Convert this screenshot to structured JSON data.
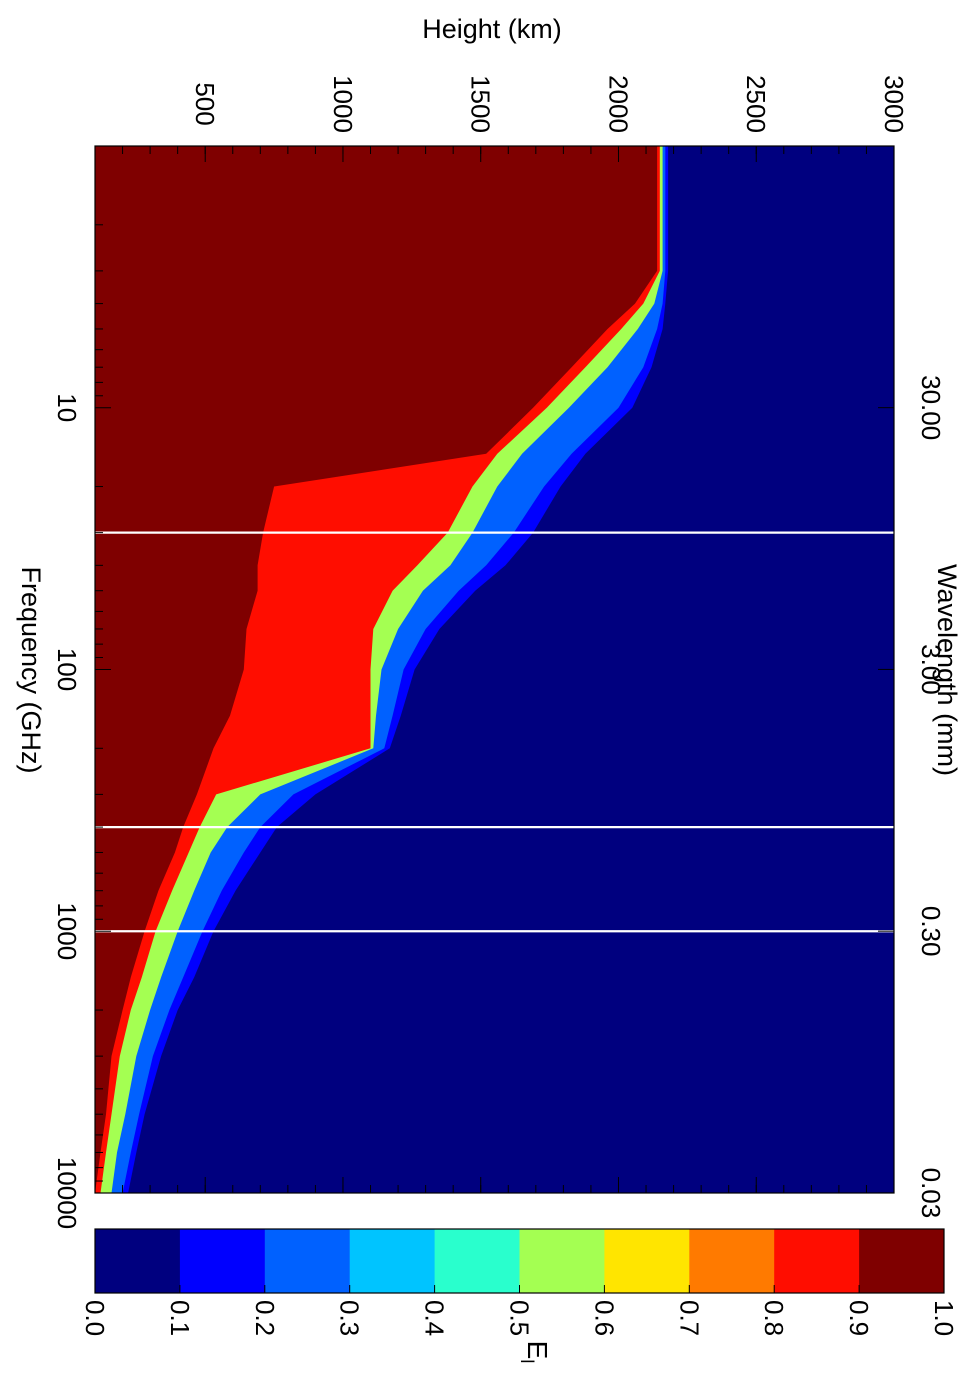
{
  "chart_data": {
    "type": "heatmap",
    "x_axis": {
      "label": "Frequency (GHz)",
      "scale": "log",
      "range": [
        1,
        10000
      ],
      "ticks": [
        {
          "value": 10,
          "label": "10"
        },
        {
          "value": 100,
          "label": "100"
        },
        {
          "value": 1000,
          "label": "1000"
        },
        {
          "value": 10000,
          "label": "10000"
        }
      ]
    },
    "x2_axis": {
      "label": "Wavelength (mm)",
      "scale": "log",
      "ticks": [
        {
          "value": 30.0,
          "label": "30.00"
        },
        {
          "value": 3.0,
          "label": "3.00"
        },
        {
          "value": 0.3,
          "label": "0.30"
        },
        {
          "value": 0.03,
          "label": "0.03"
        }
      ]
    },
    "y_axis": {
      "label": "Height (km)",
      "scale": "linear",
      "range": [
        100,
        3000
      ],
      "ticks": [
        {
          "value": 500,
          "label": "500"
        },
        {
          "value": 1000,
          "label": "1000"
        },
        {
          "value": 1500,
          "label": "1500"
        },
        {
          "value": 2000,
          "label": "2000"
        },
        {
          "value": 2500,
          "label": "2500"
        },
        {
          "value": 3000,
          "label": "3000"
        }
      ]
    },
    "colorbar": {
      "label": "E",
      "label_sub": "l",
      "levels": [
        0.0,
        0.1,
        0.2,
        0.3,
        0.4,
        0.5,
        0.6,
        0.7,
        0.8,
        0.9,
        1.0
      ],
      "tick_labels": [
        "0.0",
        "0.1",
        "0.2",
        "0.3",
        "0.4",
        "0.5",
        "0.6",
        "0.7",
        "0.8",
        "0.9",
        "1.0"
      ],
      "colors": [
        "#00007f",
        "#0000ff",
        "#0061ff",
        "#00c4ff",
        "#29ffcd",
        "#a4ff52",
        "#ffe500",
        "#ff7a00",
        "#ff0d00",
        "#7f0000"
      ]
    },
    "contour_boundaries": {
      "x_frequency_GHz": [
        1,
        2,
        3,
        4,
        5,
        7,
        10,
        15,
        20,
        30,
        40,
        50,
        70,
        100,
        150,
        200,
        300,
        400,
        500,
        700,
        1000,
        1500,
        2000,
        3000,
        5000,
        7000,
        10000
      ],
      "levels": [
        {
          "level": 0.9,
          "height_km": [
            2140,
            2140,
            2140,
            2060,
            1960,
            1830,
            1690,
            1520,
            750,
            710,
            690,
            690,
            650,
            640,
            590,
            530,
            470,
            420,
            390,
            330,
            280,
            230,
            200,
            160,
            140,
            120,
            100
          ]
        },
        {
          "level": 0.8,
          "height_km": [
            2150,
            2150,
            2150,
            2090,
            2010,
            1880,
            1740,
            1560,
            1470,
            1380,
            1270,
            1180,
            1110,
            1100,
            1100,
            1100,
            540,
            480,
            440,
            380,
            320,
            270,
            230,
            190,
            160,
            140,
            120
          ]
        },
        {
          "level": 0.5,
          "height_km": [
            2160,
            2160,
            2160,
            2130,
            2070,
            1960,
            1820,
            1650,
            1560,
            1470,
            1390,
            1290,
            1200,
            1140,
            1120,
            1110,
            700,
            580,
            520,
            460,
            400,
            340,
            300,
            250,
            210,
            180,
            160
          ]
        },
        {
          "level": 0.2,
          "height_km": [
            2170,
            2170,
            2170,
            2160,
            2140,
            2090,
            2000,
            1830,
            1730,
            1620,
            1520,
            1420,
            1300,
            1220,
            1180,
            1150,
            820,
            700,
            640,
            560,
            490,
            420,
            370,
            310,
            260,
            230,
            200
          ]
        },
        {
          "level": 0.1,
          "height_km": [
            2180,
            2180,
            2180,
            2170,
            2160,
            2120,
            2050,
            1880,
            1790,
            1690,
            1590,
            1480,
            1350,
            1260,
            1210,
            1170,
            900,
            760,
            700,
            610,
            530,
            460,
            400,
            340,
            280,
            250,
            220
          ]
        }
      ]
    },
    "vertical_lines_frequency_GHz": [
      30,
      400,
      1000
    ]
  }
}
